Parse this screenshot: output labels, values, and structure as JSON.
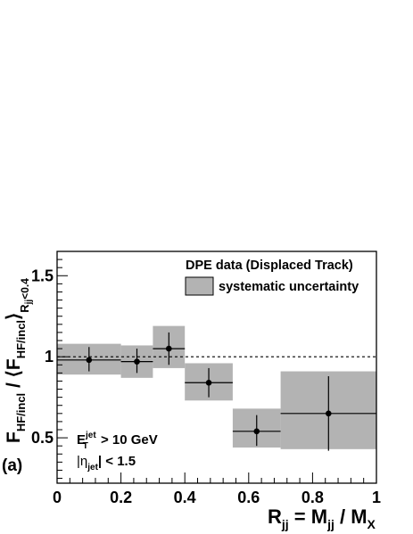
{
  "chart_data": {
    "type": "scatter",
    "xlabel": {
      "main": "R",
      "sub": "jj",
      "rest": " = M",
      "sub2": "jj",
      "rest2": " / M",
      "sub3": "X"
    },
    "ylabel": {
      "a": "F",
      "a_sub": "HF/incl",
      "b": " / ⟨F",
      "b_sub": "HF/incl",
      "c": "⟩",
      "c_sub": "R",
      "c_subsub": "jj",
      "c_tail": "<0.4"
    },
    "xlim": [
      0,
      1
    ],
    "ylim": [
      0.22,
      1.65
    ],
    "xticks": [
      {
        "v": 0,
        "label": "0"
      },
      {
        "v": 0.2,
        "label": "0.2"
      },
      {
        "v": 0.4,
        "label": "0.4"
      },
      {
        "v": 0.6,
        "label": "0.6"
      },
      {
        "v": 0.8,
        "label": "0.8"
      },
      {
        "v": 1,
        "label": "1"
      }
    ],
    "yticks": [
      {
        "v": 0.5,
        "label": "0.5"
      },
      {
        "v": 1,
        "label": "1"
      },
      {
        "v": 1.5,
        "label": "1.5"
      }
    ],
    "reference_line": 1.0,
    "points": [
      {
        "x": 0.1,
        "y": 0.98,
        "xlo": 0.0,
        "xhi": 0.2,
        "ylo": 0.91,
        "yhi": 1.06,
        "syslo": 0.89,
        "syshi": 1.08
      },
      {
        "x": 0.25,
        "y": 0.97,
        "xlo": 0.2,
        "xhi": 0.3,
        "ylo": 0.9,
        "yhi": 1.05,
        "syslo": 0.87,
        "syshi": 1.07
      },
      {
        "x": 0.35,
        "y": 1.05,
        "xlo": 0.3,
        "xhi": 0.4,
        "ylo": 0.95,
        "yhi": 1.15,
        "syslo": 0.93,
        "syshi": 1.19
      },
      {
        "x": 0.475,
        "y": 0.84,
        "xlo": 0.4,
        "xhi": 0.55,
        "ylo": 0.75,
        "yhi": 0.93,
        "syslo": 0.73,
        "syshi": 0.96
      },
      {
        "x": 0.625,
        "y": 0.54,
        "xlo": 0.55,
        "xhi": 0.7,
        "ylo": 0.45,
        "yhi": 0.64,
        "syslo": 0.44,
        "syshi": 0.68
      },
      {
        "x": 0.85,
        "y": 0.65,
        "xlo": 0.7,
        "xhi": 1.0,
        "ylo": 0.42,
        "yhi": 0.88,
        "syslo": 0.43,
        "syshi": 0.91
      }
    ],
    "legend": {
      "placement": "top-right",
      "title": "DPE data (Displaced Track)",
      "entry": "systematic uncertainty"
    },
    "annotations": {
      "et_main": "E",
      "et_sup": "jet",
      "et_sub": "T",
      "et_rest": " > 10 GeV",
      "eta_open": "|η",
      "eta_sub": "jet",
      "eta_rest": "| < 1.5",
      "panel": "(a)"
    },
    "colors": {
      "band": "#b3b3b3",
      "marker": "#000000",
      "axis": "#000000"
    }
  }
}
